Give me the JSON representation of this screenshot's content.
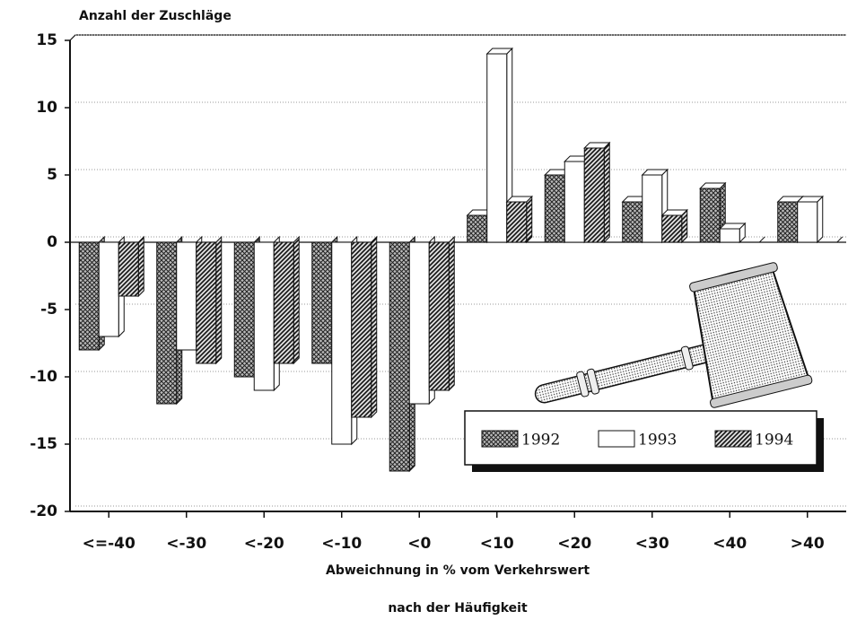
{
  "chart_data": {
    "type": "bar3d",
    "ylabel": "Anzahl der Zuschläge",
    "xlabel": "Abweichnung in % vom Verkehrswert",
    "subtitle": "nach der Häufigkeit",
    "categories": [
      "<=-40",
      "<-30",
      "<-20",
      "<-10",
      "<0",
      "<10",
      "<20",
      "<30",
      "<40",
      ">40"
    ],
    "series": [
      {
        "name": "1992",
        "color": "#777777",
        "pattern": "crosshatch",
        "values": [
          -8,
          -12,
          -10,
          -9,
          -17,
          2,
          5,
          3,
          4,
          3
        ]
      },
      {
        "name": "1993",
        "color": "#ffffff",
        "pattern": "none",
        "values": [
          -7,
          -8,
          -11,
          -15,
          -12,
          14,
          6,
          5,
          1,
          3
        ]
      },
      {
        "name": "1994",
        "color": "#555555",
        "pattern": "diagonal",
        "values": [
          -4,
          -9,
          -9,
          -13,
          -11,
          3,
          7,
          2,
          0,
          0
        ]
      }
    ],
    "ylim": [
      -20,
      15
    ],
    "yticks": [
      -20,
      -15,
      -10,
      -5,
      0,
      5,
      10,
      15
    ],
    "grid": true,
    "legend": "lower right"
  }
}
